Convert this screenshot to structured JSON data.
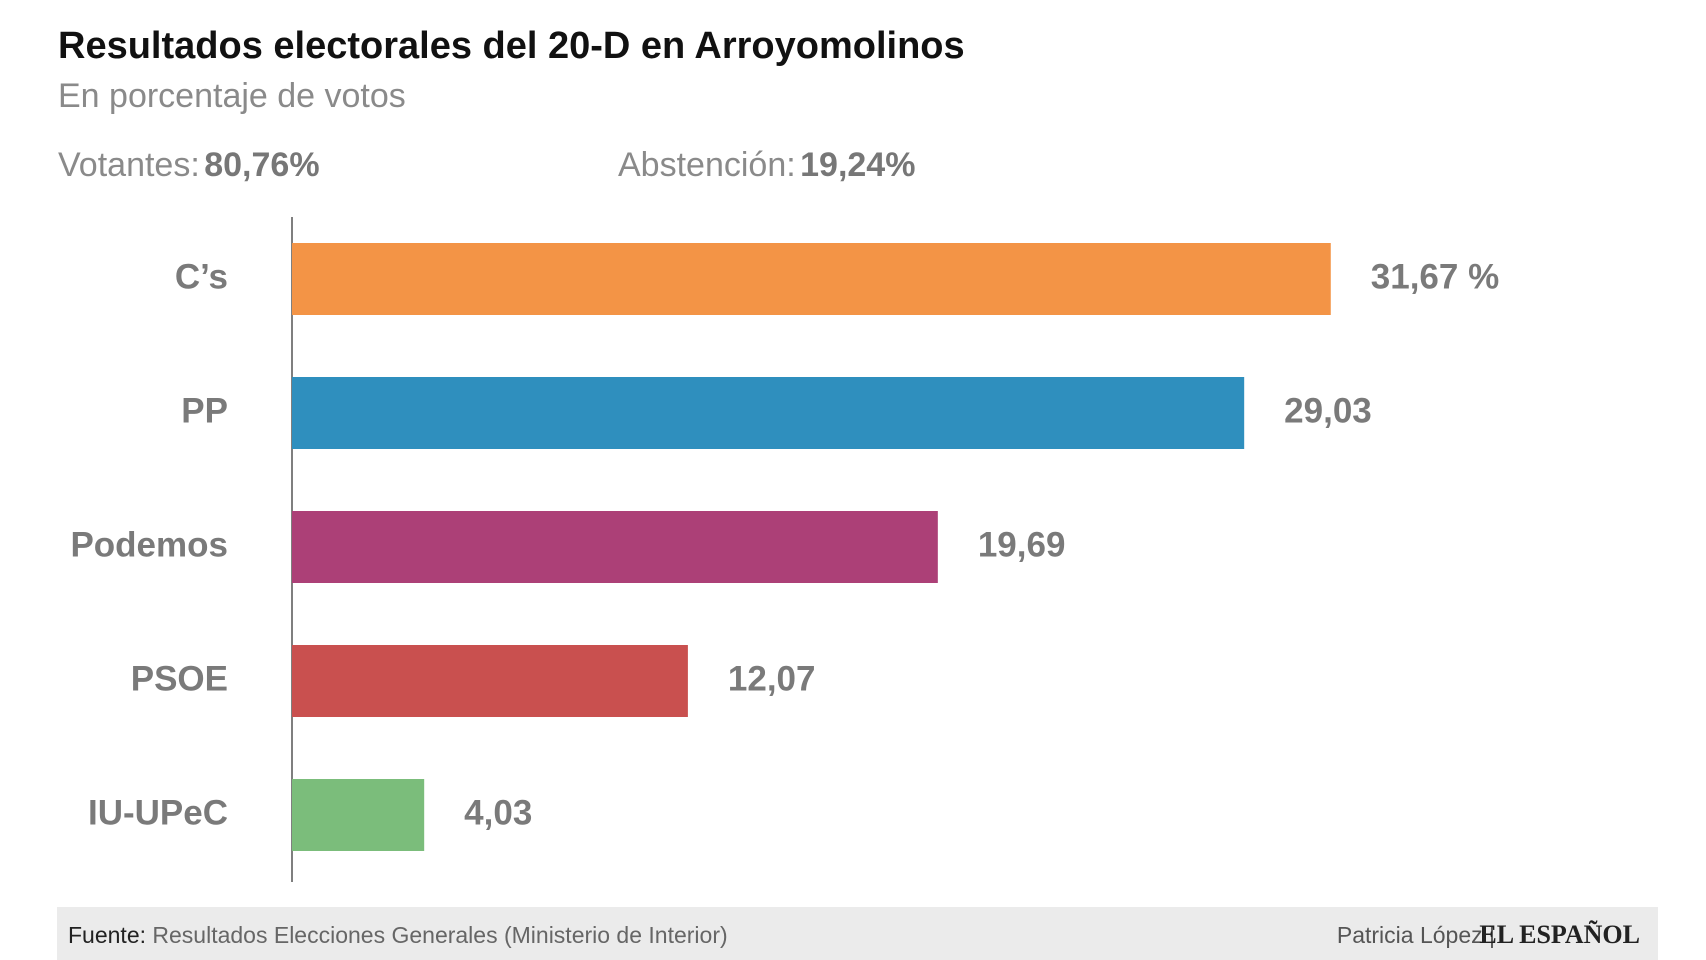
{
  "chart_data": {
    "type": "bar",
    "orientation": "horizontal",
    "title": "Resultados electorales del 20-D en Arroyomolinos",
    "subtitle": "En porcentaje de votos",
    "stats": [
      {
        "label": "Votantes:",
        "value": "80,76%"
      },
      {
        "label": "Abstención:",
        "value": "19,24%"
      }
    ],
    "categories": [
      "C’s",
      "PP",
      "Podemos",
      "PSOE",
      "IU-UPeC"
    ],
    "values": [
      31.67,
      29.03,
      19.69,
      12.07,
      4.03
    ],
    "value_labels": [
      "31,67 %",
      "29,03",
      "19,69",
      "12,07",
      "4,03"
    ],
    "colors": [
      "#f39446",
      "#2f8fbe",
      "#ac4077",
      "#c9504f",
      "#7bbd7b"
    ],
    "xlim": [
      0,
      40
    ],
    "source_label": "Fuente:",
    "source": "Resultados Elecciones Generales (Ministerio de Interior)",
    "author": "Patricia López |",
    "brand": "EL ESPAÑOL"
  }
}
